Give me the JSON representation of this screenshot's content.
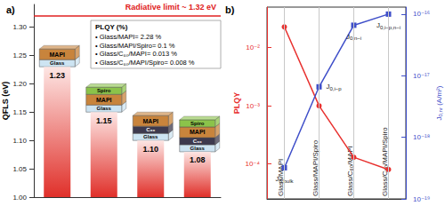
{
  "chart_data": [
    {
      "type": "bar",
      "title": "a)",
      "y_label": "QFLS (eV)",
      "categories": [
        null,
        null,
        null,
        null
      ],
      "values": [
        1.23,
        1.15,
        1.1,
        1.08
      ],
      "value_labels": [
        "1.23",
        "1.15",
        "1.10",
        "1.08"
      ],
      "color": "#e0302a",
      "ylim": [
        1.0,
        1.34
      ],
      "yticks": [
        {
          "value": 1.0,
          "label": "1.00"
        },
        1.05,
        {
          "value": 1.1,
          "label": "1.10"
        },
        1.15,
        {
          "value": 1.2,
          "label": "1.20"
        },
        1.25,
        {
          "value": 1.3,
          "label": "1.30"
        }
      ],
      "data_labels": true,
      "tick_labels": "y",
      "grid": false,
      "reference_line": {
        "value": 1.32,
        "label": "Radiative limit ~ 1.32 eV",
        "color": "#e02020"
      },
      "device_stacks": [
        [
          "MAPI",
          "Glass"
        ],
        [
          "Spiro",
          "MAPI",
          "Glass"
        ],
        [
          "MAPI",
          "C₆₀",
          "Glass"
        ],
        [
          "Spiro",
          "MAPI",
          "C₆₀",
          "Glass"
        ]
      ],
      "annotation": {
        "title": "PLQY (%)",
        "lines": [
          "• Glass/MAPI= 2.28 %",
          "• Glass/MAPI/Spiro= 0.1 %",
          "• Glass/C₆₀/MAPI= 0.013 %",
          "• Glass/C₆₀/MAPI/Spiro= 0.008 %"
        ]
      }
    },
    {
      "type": "line",
      "title": "b)",
      "y_label": "PLQY",
      "y2_label": "J0,nr (A/m²)",
      "categories": [
        "Glass/MAPI",
        "Glass/MAPI/Spiro",
        "Glass/C₆₀/MAPI",
        "Glass/C₆₀/MAPI/Spiro"
      ],
      "log": "y",
      "grid": true,
      "tick_labels": true,
      "ylim": [
        2.5e-05,
        0.05
      ],
      "yticks": [
        {
          "value": 0.0001,
          "label": "10⁻⁴"
        },
        {
          "value": 0.001,
          "label": "10⁻³"
        },
        {
          "value": 0.01,
          "label": "10⁻²"
        }
      ],
      "y2lim": [
        1e-19,
        1.3e-16
      ],
      "y2ticks": [
        {
          "value": 1e-19,
          "label": "10⁻¹⁹"
        },
        {
          "value": 1e-18,
          "label": "10⁻¹⁸"
        },
        {
          "value": 1e-17,
          "label": "10⁻¹⁷"
        },
        {
          "value": 1e-16,
          "label": "10⁻¹⁶"
        }
      ],
      "series": [
        {
          "color": "#e8312f",
          "marker": "circle",
          "values": [
            0.0228,
            0.001,
            0.00013,
            8e-05
          ]
        },
        {
          "axis": "y2",
          "color": "#3f4fc9",
          "marker": "square",
          "values": [
            3.2e-19,
            6.6e-18,
            6.6e-17,
            1e-16
          ],
          "point_labels": [
            "J0,bulk",
            "J0,i−p",
            "J0,n−i",
            "J0,i−p,n−i"
          ]
        }
      ]
    }
  ]
}
